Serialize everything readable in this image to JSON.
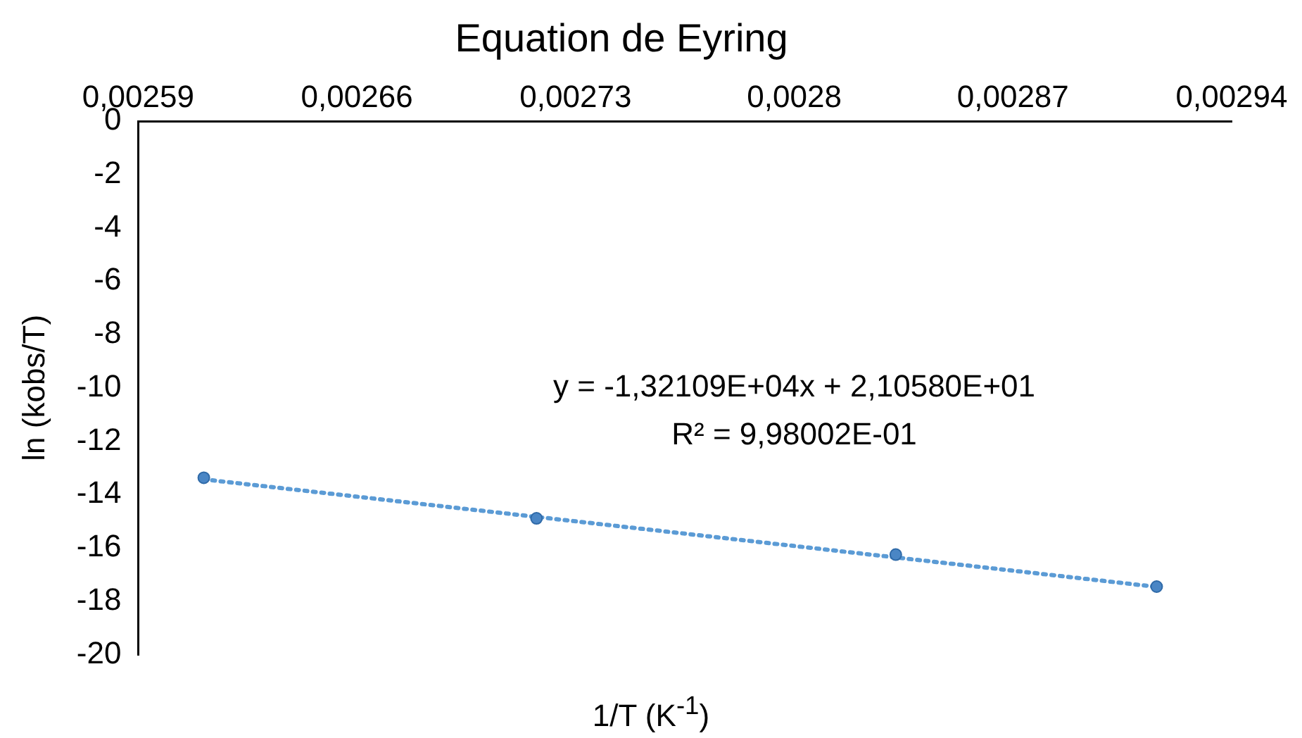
{
  "chart_data": {
    "type": "scatter",
    "title": "Equation de Eyring",
    "xlabel": "1/T (K$^{-1}$)",
    "ylabel": "ln (kobs/T)",
    "annotations": [
      "y = -1,32109E+04x + 2,10580E+01",
      "R² = 9,98002E-01"
    ],
    "xlim": [
      0.00259,
      0.00294
    ],
    "xticks": [
      {
        "value": 0.00259,
        "label": "0,00259"
      },
      {
        "value": 0.00266,
        "label": "0,00266"
      },
      {
        "value": 0.00273,
        "label": "0,00273"
      },
      {
        "value": 0.0028,
        "label": "0,0028"
      },
      {
        "value": 0.00287,
        "label": "0,00287"
      },
      {
        "value": 0.00294,
        "label": "0,00294"
      }
    ],
    "ylim": [
      -20,
      0
    ],
    "yticks": [
      -20,
      -18,
      -16,
      -14,
      -12,
      -10,
      -8,
      -6,
      -4,
      -2,
      0
    ],
    "grid": false,
    "legend": false,
    "series": [
      {
        "color": "#4a86c5",
        "marker": "circle",
        "x": [
          0.002611,
          0.0027175,
          0.0028325,
          0.002916
        ],
        "values": [
          -13.37,
          -14.89,
          -16.25,
          -17.45
        ]
      },
      {
        "type": "line",
        "color": "#5b9bd5",
        "marker": "none",
        "line_style": "dotted",
        "x": [
          0.002611,
          0.002916
        ],
        "values": [
          -13.43,
          -17.46
        ]
      }
    ]
  }
}
